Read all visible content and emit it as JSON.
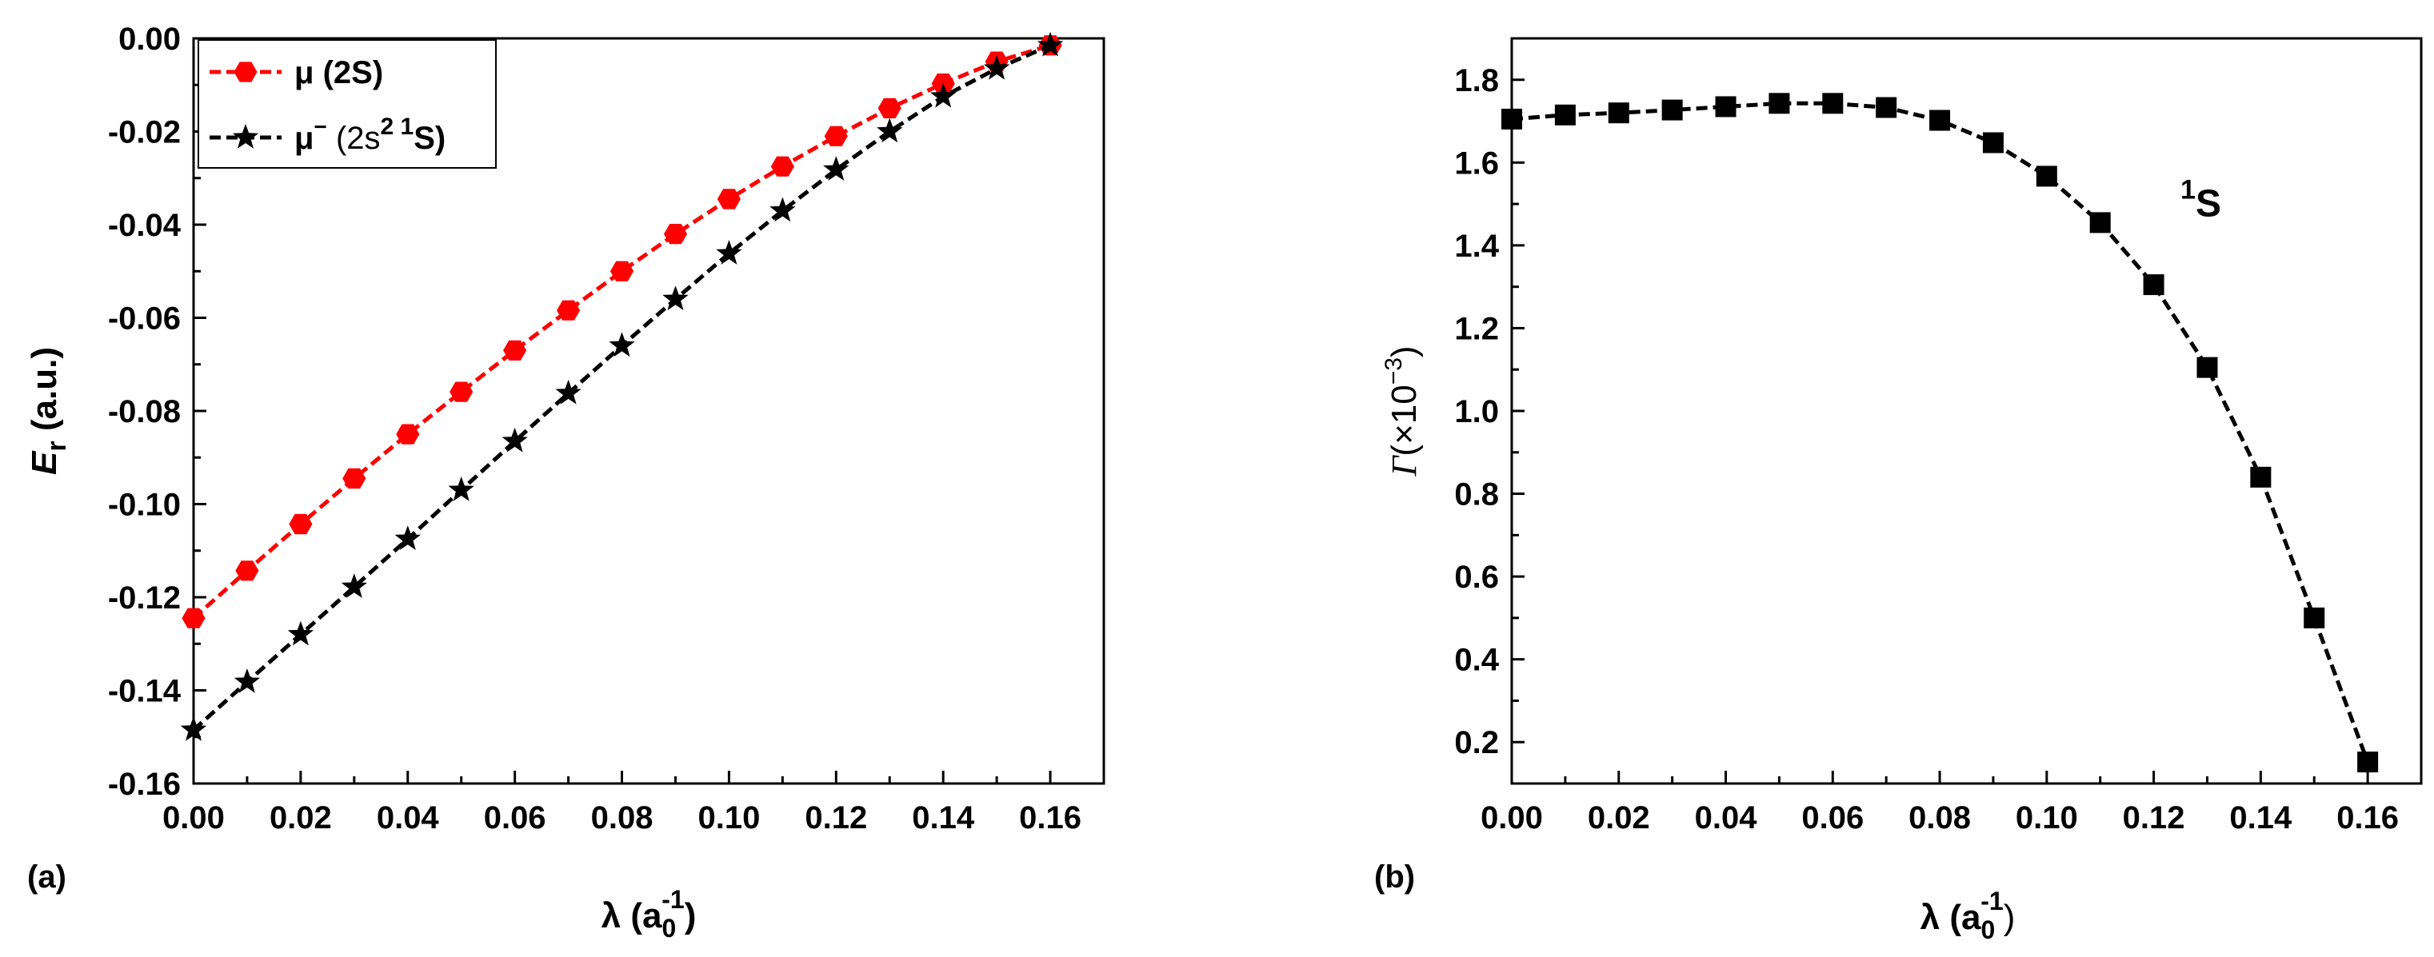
{
  "chart_data": [
    {
      "type": "line",
      "panel_label": "(a)",
      "x": [
        0.0,
        0.01,
        0.02,
        0.03,
        0.04,
        0.05,
        0.06,
        0.07,
        0.08,
        0.09,
        0.1,
        0.11,
        0.12,
        0.13,
        0.14,
        0.15,
        0.16
      ],
      "xlim": [
        0.0,
        0.17
      ],
      "ylim": [
        -0.16,
        0.0
      ],
      "xticks": [
        "0.00",
        "0.02",
        "0.04",
        "0.06",
        "0.08",
        "0.10",
        "0.12",
        "0.14",
        "0.16"
      ],
      "yticks": [
        "0.00",
        "-0.02",
        "-0.04",
        "-0.06",
        "-0.08",
        "-0.10",
        "-0.12",
        "-0.14",
        "-0.16"
      ],
      "xlabel": {
        "main": "λ (a",
        "sub": "0",
        "sup": "-1",
        "close": ")"
      },
      "ylabel": {
        "main": "E",
        "sub": "r",
        "rest": " (a.u.)"
      },
      "grid": false,
      "legend_position": "top-left",
      "series": [
        {
          "name": {
            "main": "μ (2S)"
          },
          "color": "#ff0000",
          "marker": "hexagon",
          "values": [
            -0.1245,
            -0.1143,
            -0.1043,
            -0.0945,
            -0.085,
            -0.0759,
            -0.067,
            -0.0584,
            -0.05,
            -0.042,
            -0.0345,
            -0.0275,
            -0.021,
            -0.015,
            -0.0097,
            -0.005,
            -0.0015
          ]
        },
        {
          "name": {
            "main": "μ",
            "sup1": "−",
            "mid": " (2s",
            "sup2": "2 1",
            "end": "S)"
          },
          "color": "#000000",
          "marker": "star",
          "values": [
            -0.1485,
            -0.1382,
            -0.128,
            -0.1178,
            -0.1075,
            -0.097,
            -0.0865,
            -0.0762,
            -0.066,
            -0.056,
            -0.0462,
            -0.037,
            -0.0282,
            -0.02,
            -0.0125,
            -0.0065,
            -0.0015
          ]
        }
      ]
    },
    {
      "type": "line",
      "panel_label": "(b)",
      "x": [
        0.0,
        0.01,
        0.02,
        0.03,
        0.04,
        0.05,
        0.06,
        0.07,
        0.08,
        0.09,
        0.1,
        0.11,
        0.12,
        0.13,
        0.14,
        0.15,
        0.16
      ],
      "xlim": [
        0.0,
        0.17
      ],
      "ylim": [
        0.1,
        1.9
      ],
      "xticks": [
        "0.00",
        "0.02",
        "0.04",
        "0.06",
        "0.08",
        "0.10",
        "0.12",
        "0.14",
        "0.16"
      ],
      "yticks": [
        "0.2",
        "0.4",
        "0.6",
        "0.8",
        "1.0",
        "1.2",
        "1.4",
        "1.6",
        "1.8"
      ],
      "xlabel": {
        "main": "λ (a",
        "sub": "0",
        "sup": "-1",
        "close": ")"
      },
      "ylabel": {
        "main": "Γ",
        "rest": "(×10",
        "sup": "−3",
        "close": ")"
      },
      "grid": false,
      "annotation": {
        "sup": "1",
        "text": "S",
        "x": 0.125,
        "y": 1.47
      },
      "series": [
        {
          "color": "#000000",
          "marker": "square",
          "values": [
            1.705,
            1.715,
            1.72,
            1.727,
            1.735,
            1.743,
            1.743,
            1.733,
            1.702,
            1.648,
            1.567,
            1.455,
            1.305,
            1.105,
            0.84,
            0.5,
            0.152
          ]
        }
      ]
    }
  ]
}
